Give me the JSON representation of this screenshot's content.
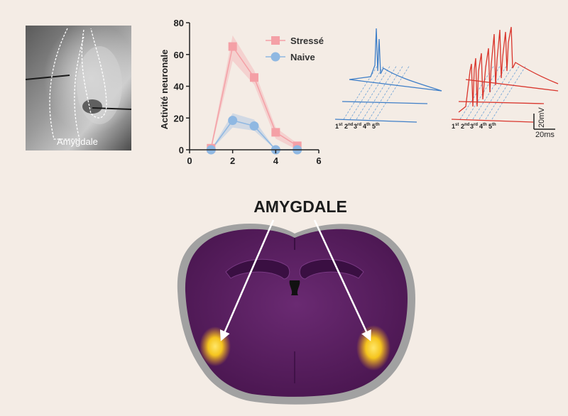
{
  "slice_photo": {
    "label": "Amygdale"
  },
  "chart_data": {
    "type": "line",
    "ylabel": "Activité neuronale",
    "xlabel": "",
    "xlim": [
      0,
      6
    ],
    "ylim": [
      0,
      80
    ],
    "x_ticks": [
      0,
      2,
      4,
      6
    ],
    "y_ticks": [
      0,
      20,
      40,
      60,
      80
    ],
    "legend_position": "top-right",
    "series": [
      {
        "name": "Stressé",
        "marker": "square",
        "color": "#f4a0a6",
        "x": [
          1,
          2,
          3,
          4,
          5
        ],
        "y": [
          1,
          65,
          45.5,
          11,
          2.5
        ],
        "lower": [
          0,
          56,
          41,
          7,
          0
        ],
        "upper": [
          3,
          72,
          50,
          14,
          4
        ]
      },
      {
        "name": "Naive",
        "marker": "circle",
        "color": "#8fb8e2",
        "x": [
          1,
          2,
          3,
          4,
          5
        ],
        "y": [
          0,
          18.5,
          15,
          0,
          0
        ],
        "lower": [
          0,
          14,
          12,
          0,
          0
        ],
        "upper": [
          0,
          23,
          19,
          0,
          0
        ]
      }
    ]
  },
  "traces": {
    "blue_color": "#3f7fc8",
    "red_color": "#d9352c",
    "blue_labels": [
      {
        "n": "1",
        "sup": "st"
      },
      {
        "n": "2",
        "sup": "nd"
      },
      {
        "n": "3",
        "sup": "rd"
      },
      {
        "n": "4",
        "sup": "th"
      },
      {
        "n": "5",
        "sup": "th"
      }
    ],
    "red_labels": [
      {
        "n": "1",
        "sup": "st"
      },
      {
        "n": "2",
        "sup": "nd"
      },
      {
        "n": "3",
        "sup": "rd"
      },
      {
        "n": "4",
        "sup": "th"
      },
      {
        "n": "5",
        "sup": "th"
      }
    ],
    "scale_voltage": "20mV",
    "scale_time": "20ms"
  },
  "brain": {
    "title": "AMYGDALE",
    "tissue_color": "#5c1f62",
    "highlight_color": "#f5c51e"
  }
}
